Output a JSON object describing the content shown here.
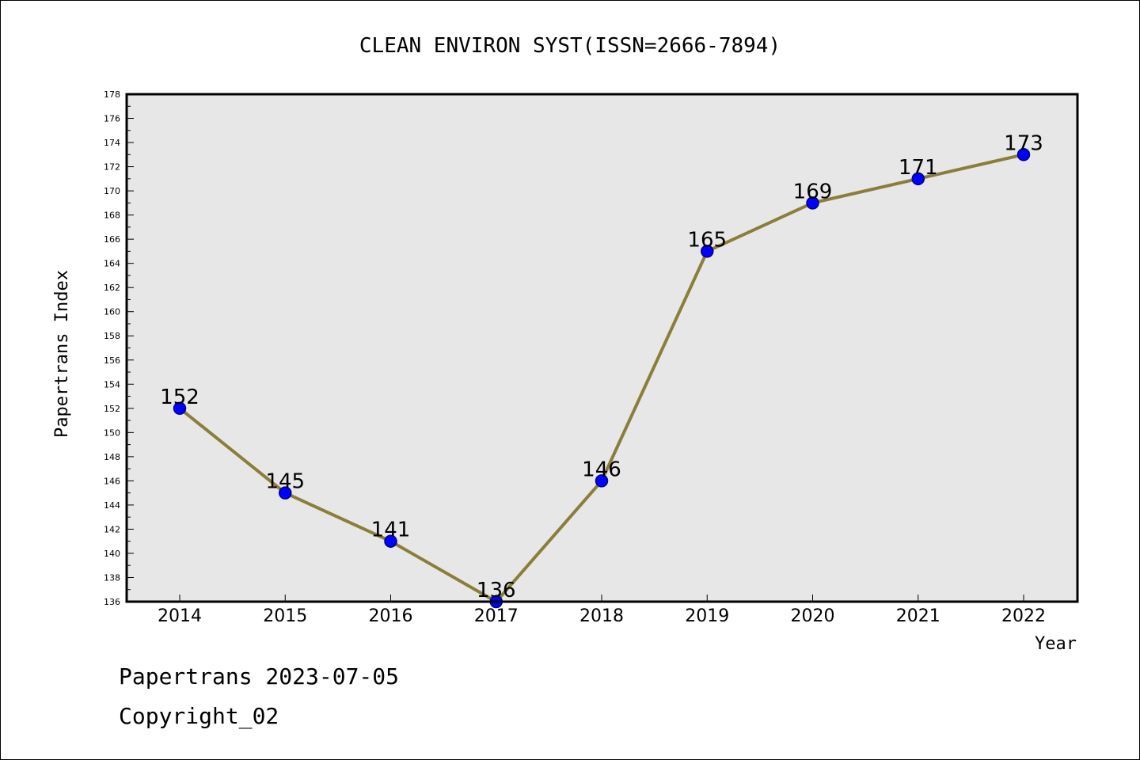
{
  "chart_data": {
    "type": "line",
    "title": "CLEAN ENVIRON SYST(ISSN=2666-7894)",
    "xlabel": "Year",
    "ylabel": "Papertrans Index",
    "x": [
      "2014",
      "2015",
      "2016",
      "2017",
      "2018",
      "2019",
      "2020",
      "2021",
      "2022"
    ],
    "series": [
      {
        "values": [
          152,
          145,
          141,
          136,
          146,
          165,
          169,
          171,
          173
        ]
      }
    ],
    "data_labels": [
      "152",
      "145",
      "141",
      "136",
      "146",
      "165",
      "169",
      "171",
      "173"
    ],
    "ylim": [
      136,
      178
    ],
    "y_ticks": [
      "136",
      "138",
      "140",
      "142",
      "144",
      "146",
      "148",
      "150",
      "152",
      "154",
      "156",
      "158",
      "160",
      "162",
      "164",
      "166",
      "168",
      "170",
      "172",
      "174",
      "176",
      "178"
    ],
    "grid": false,
    "legend": "none",
    "colors": {
      "line": "#8b7d3a",
      "marker_fill": "#0000ff",
      "marker_stroke": "#000080",
      "plot_background": "#e7e7e7"
    }
  },
  "footer": {
    "line1": "Papertrans 2023-07-05",
    "line2": "Copyright_02"
  }
}
